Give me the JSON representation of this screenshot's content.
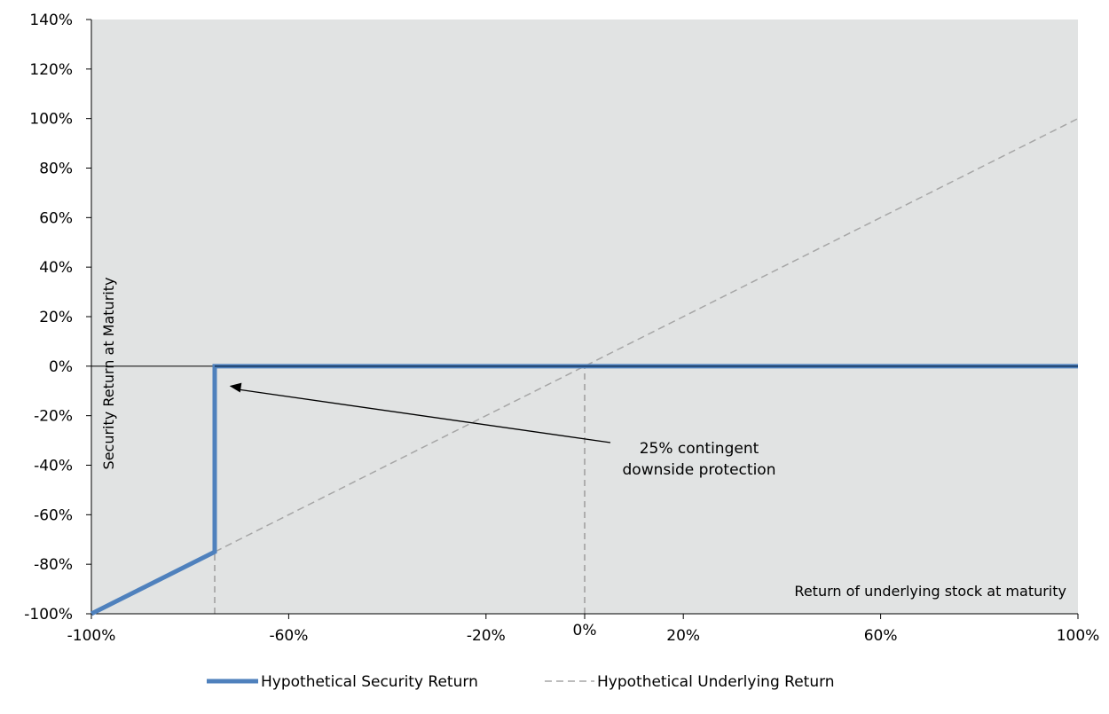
{
  "chart_data": {
    "type": "line",
    "x_axis": {
      "label": "Return of underlying stock at maturity",
      "range": [
        -100,
        100
      ],
      "ticks": [
        {
          "value": -100,
          "label": "-100%"
        },
        {
          "value": -60,
          "label": "-60%"
        },
        {
          "value": -20,
          "label": "-20%"
        },
        {
          "value": 0,
          "label": "0%"
        },
        {
          "value": 20,
          "label": "20%"
        },
        {
          "value": 60,
          "label": "60%"
        },
        {
          "value": 100,
          "label": "100%"
        }
      ]
    },
    "y_axis": {
      "label": "Security Return at Maturity",
      "range": [
        -100,
        140
      ],
      "ticks": [
        {
          "value": 140,
          "label": "140%"
        },
        {
          "value": 120,
          "label": "120%"
        },
        {
          "value": 100,
          "label": "100%"
        },
        {
          "value": 80,
          "label": "80%"
        },
        {
          "value": 60,
          "label": "60%"
        },
        {
          "value": 40,
          "label": "40%"
        },
        {
          "value": 20,
          "label": "20%"
        },
        {
          "value": 0,
          "label": "0%"
        },
        {
          "value": -20,
          "label": "-20%"
        },
        {
          "value": -40,
          "label": "-40%"
        },
        {
          "value": -60,
          "label": "-60%"
        },
        {
          "value": -80,
          "label": "-80%"
        },
        {
          "value": -100,
          "label": "-100%"
        }
      ]
    },
    "series": [
      {
        "name": "Hypothetical Security Return",
        "color": "#4f81bd",
        "style": "solid",
        "points": [
          [
            -100,
            -100
          ],
          [
            -75,
            -75
          ],
          [
            -75,
            0
          ],
          [
            100,
            0
          ]
        ]
      },
      {
        "name": "Hypothetical Underlying Return",
        "color": "#a6a6a6",
        "style": "dashed",
        "points": [
          [
            -100,
            -100
          ],
          [
            100,
            100
          ]
        ]
      }
    ],
    "reference_lines": [
      {
        "type": "horizontal",
        "y": 0,
        "color": "#000000"
      },
      {
        "type": "vertical",
        "x": -75,
        "y_from": -100,
        "y_to": 0,
        "style": "dashed"
      },
      {
        "type": "vertical",
        "x": 0,
        "y_from": -100,
        "y_to": 0,
        "style": "dashed"
      }
    ],
    "annotation": {
      "lines": [
        "25% contingent",
        "downside protection"
      ],
      "arrow_to": [
        -72,
        -8
      ]
    },
    "plot_background": "#e1e3e3",
    "legend_position": "bottom"
  }
}
